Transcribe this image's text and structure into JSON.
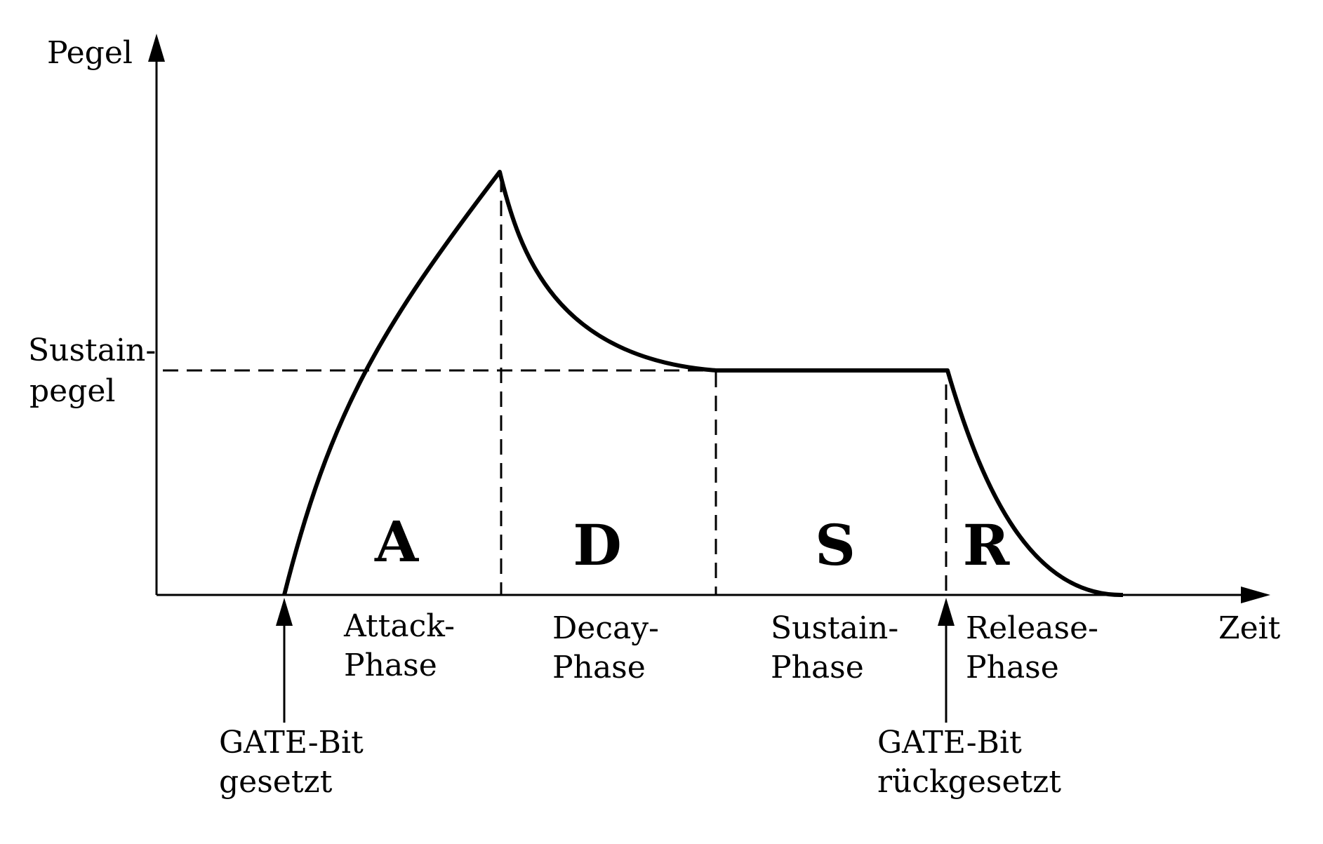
{
  "y_axis_label": "Pegel",
  "x_axis_label": "Zeit",
  "sustain_level_label": [
    "Sustain-",
    "pegel"
  ],
  "phases": [
    {
      "letter": "A",
      "name": [
        "Attack-",
        "Phase"
      ]
    },
    {
      "letter": "D",
      "name": [
        "Decay-",
        "Phase"
      ]
    },
    {
      "letter": "S",
      "name": [
        "Sustain-",
        "Phase"
      ]
    },
    {
      "letter": "R",
      "name": [
        "Release-",
        "Phase"
      ]
    }
  ],
  "gate_set": [
    "GATE-Bit",
    "gesetzt"
  ],
  "gate_reset": [
    "GATE-Bit",
    "rückgesetzt"
  ],
  "colors": {
    "line": "#000000",
    "background": "#ffffff"
  }
}
